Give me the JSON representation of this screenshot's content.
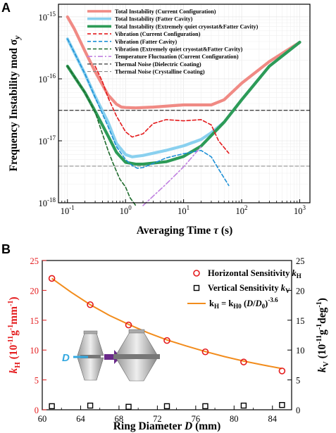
{
  "chart_data": [
    {
      "panel": "A",
      "type": "line",
      "xlabel": "Averaging Time τ (s)",
      "ylabel": "Frequency Instability mod σ_y",
      "xscale": "log",
      "yscale": "log",
      "xlim": [
        0.07,
        1500
      ],
      "ylim": [
        1e-18,
        1.6e-15
      ],
      "x_ticks": [
        "10^-1",
        "10^0",
        "10^1",
        "10^2",
        "10^3"
      ],
      "y_ticks": [
        "10^-18",
        "10^-17",
        "10^-16",
        "10^-15"
      ],
      "grid": "minor, light",
      "legend_position": "top-right",
      "series": [
        {
          "name": "Total Instability (Current Configuration)",
          "color": "#f08a84",
          "style": "solid-thick",
          "x": [
            0.1,
            0.13,
            0.2,
            0.3,
            0.5,
            0.7,
            0.85,
            1,
            1.5,
            3,
            10,
            30,
            50,
            100,
            300,
            1000
          ],
          "y": [
            1e-15,
            6.5e-16,
            2.8e-16,
            1.3e-16,
            5.5e-17,
            3.9e-17,
            3.5e-17,
            3.45e-17,
            3.4e-17,
            3.5e-17,
            3.8e-17,
            3.8e-17,
            4.6e-17,
            8.5e-17,
            1.9e-16,
            3.9e-16
          ]
        },
        {
          "name": "Total Instability (Fatter Cavity)",
          "color": "#89d0ef",
          "style": "solid-thick",
          "x": [
            0.1,
            0.13,
            0.2,
            0.3,
            0.5,
            0.7,
            1,
            1.3,
            2,
            5,
            10,
            20,
            30,
            50,
            100,
            300,
            1000
          ],
          "y": [
            4.4e-16,
            2.7e-16,
            1.2e-16,
            5.2e-17,
            2e-17,
            9e-18,
            6e-18,
            5.5e-18,
            5.8e-18,
            7e-18,
            8.3e-18,
            1.05e-17,
            1.35e-17,
            2e-17,
            4.6e-17,
            1.6e-16,
            3.9e-16
          ]
        },
        {
          "name": "Total Instability (Extremely quiet cryostat&Fatter Cavity)",
          "color": "#2d9b57",
          "style": "solid-thick",
          "x": [
            0.1,
            0.13,
            0.2,
            0.3,
            0.5,
            0.7,
            1,
            1.5,
            2,
            5,
            10,
            20,
            50,
            100,
            300,
            1000
          ],
          "y": [
            1.6e-16,
            1.1e-16,
            6e-17,
            3e-17,
            1.2e-17,
            6.5e-18,
            4.5e-18,
            4.2e-18,
            4.2e-18,
            4.6e-18,
            5.6e-18,
            8.2e-18,
            2e-17,
            4.6e-17,
            1.6e-16,
            3.9e-16
          ]
        },
        {
          "name": "Vibration (Current Configuration)",
          "color": "#e41a1c",
          "style": "dashed",
          "x": [
            0.3,
            0.4,
            0.5,
            0.7,
            1,
            1.3,
            2,
            3,
            5,
            10,
            20,
            30,
            40,
            60
          ],
          "y": [
            1.6e-16,
            9e-17,
            5e-17,
            2.5e-17,
            1.4e-17,
            1.15e-17,
            1.3e-17,
            1.9e-17,
            2.2e-17,
            2.1e-17,
            2.2e-17,
            1.8e-17,
            1e-17,
            6.3e-18
          ]
        },
        {
          "name": "Vibration (Fatter Cavity)",
          "color": "#1e90d6",
          "style": "dashed",
          "x": [
            0.1,
            0.13,
            0.2,
            0.3,
            0.5,
            0.7,
            1,
            1.3,
            1.6,
            2,
            3,
            5,
            10,
            20,
            30,
            40,
            60
          ],
          "y": [
            4.4e-16,
            2.7e-16,
            1.2e-16,
            5e-17,
            1.7e-17,
            8e-18,
            5e-18,
            4e-18,
            3.6e-18,
            3.7e-18,
            4.3e-18,
            5.3e-18,
            6.2e-18,
            7e-18,
            5.5e-18,
            3.5e-18,
            1.9e-18
          ]
        },
        {
          "name": "Vibration (Extremely quiet cryostat&Fatter Cavity)",
          "color": "#1e6b2c",
          "style": "dashed",
          "x": [
            0.1,
            0.13,
            0.2,
            0.3,
            0.4,
            0.5,
            0.6,
            0.7,
            0.8,
            1,
            1.2,
            1.5
          ],
          "y": [
            1.6e-16,
            1.1e-16,
            6e-17,
            2.9e-17,
            1.3e-17,
            7e-18,
            4.5e-18,
            3.2e-18,
            2.4e-18,
            1.8e-18,
            1.2e-18,
            9e-19
          ]
        },
        {
          "name": "Temperature Fluctuation (Current Configuration)",
          "color": "#c080e0",
          "style": "dashdot",
          "x": [
            2,
            5,
            10,
            20
          ],
          "y": [
            9e-19,
            2e-18,
            3.8e-18,
            8e-18
          ]
        },
        {
          "name": "Thermal Noise (Dielectric Coating)",
          "color": "#222222",
          "style": "dashed-thin",
          "x": [
            0.1,
            1000
          ],
          "y": [
            3.1e-17,
            3.1e-17
          ]
        },
        {
          "name": "Thermal Noise (Crystalline Coating)",
          "color": "#888888",
          "style": "dashed-thin",
          "x": [
            0.1,
            1000
          ],
          "y": [
            3.9e-18,
            3.9e-18
          ]
        }
      ]
    },
    {
      "panel": "B",
      "type": "scatter",
      "xlabel": "Ring Diameter D (mm)",
      "ylabel_left": "k_H (10^-11 g^-1 mm^-1)",
      "ylabel_right": "k_V (10^-11 g^-1 deg^-1)",
      "xlim": [
        60,
        86
      ],
      "ylim": [
        0,
        25
      ],
      "x_ticks": [
        60,
        64,
        68,
        72,
        76,
        80,
        84
      ],
      "y_ticks": [
        0,
        5,
        10,
        15,
        20,
        25
      ],
      "legend_position": "top-right",
      "series": [
        {
          "name": "Horizontal Sensitivity k_H",
          "color": "#e41a1c",
          "marker": "open-circle",
          "x": [
            61,
            65,
            69,
            73,
            77,
            81,
            85
          ],
          "y": [
            22.0,
            17.6,
            14.2,
            11.6,
            9.7,
            8.0,
            6.5
          ]
        },
        {
          "name": "Vertical Sensitivity k_V",
          "color": "#000000",
          "marker": "open-square",
          "x": [
            61,
            65,
            69,
            73,
            77,
            81,
            85
          ],
          "y": [
            0.6,
            0.7,
            0.5,
            0.6,
            0.6,
            0.7,
            0.8
          ]
        },
        {
          "name": "k_H = k_H0 (D/D_0)^-3.6",
          "color": "#f28c1c",
          "style": "solid",
          "x": [
            61,
            63,
            65,
            67,
            69,
            71,
            73,
            75,
            77,
            79,
            81,
            83,
            85
          ],
          "y": [
            22.0,
            19.7,
            17.6,
            15.8,
            14.3,
            12.9,
            11.7,
            10.7,
            9.75,
            8.9,
            8.15,
            7.5,
            6.9
          ]
        }
      ],
      "inset_label": "D"
    }
  ]
}
